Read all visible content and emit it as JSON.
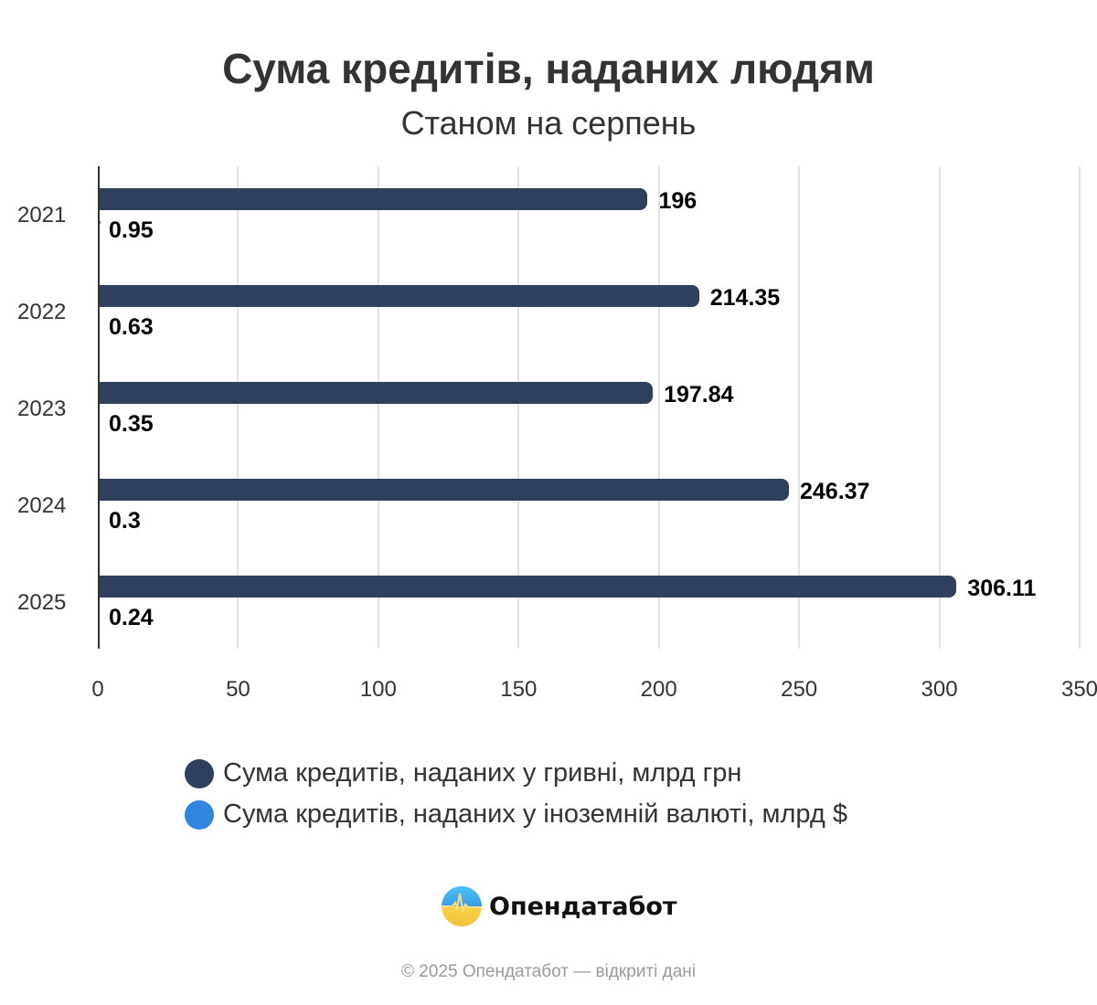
{
  "title": "Сума кредитів, наданих людям",
  "subtitle": "Станом на серпень",
  "chart_data": {
    "type": "bar",
    "orientation": "horizontal",
    "title": "Сума кредитів, наданих людям",
    "subtitle": "Станом на серпень",
    "categories": [
      "2021",
      "2022",
      "2023",
      "2024",
      "2025"
    ],
    "series": [
      {
        "name": "Сума кредитів, наданих у гривні, млрд грн",
        "color": "#2f3f5e",
        "values": [
          196,
          214.35,
          197.84,
          246.37,
          306.11
        ]
      },
      {
        "name": "Сума кредитів, наданих у іноземній валюті, млрд $",
        "color": "#2e86de",
        "values": [
          0.95,
          0.63,
          0.35,
          0.3,
          0.24
        ]
      }
    ],
    "value_labels_uah": [
      "196",
      "214.35",
      "197.84",
      "246.37",
      "306.11"
    ],
    "value_labels_usd": [
      "0.95",
      "0.63",
      "0.35",
      "0.3",
      "0.24"
    ],
    "xlabel": "",
    "ylabel": "",
    "xlim": [
      0,
      350
    ],
    "x_ticks": [
      "0",
      "50",
      "100",
      "150",
      "200",
      "250",
      "300",
      "350"
    ],
    "grid": true,
    "legend_position": "bottom"
  },
  "legend": [
    {
      "label": "Сума кредитів, наданих у гривні, млрд грн",
      "color": "#2f3f5e"
    },
    {
      "label": "Сума кредитів, наданих у іноземній валюті, млрд $",
      "color": "#2e86de"
    }
  ],
  "logo": {
    "text": "Опендатабот",
    "icon": "opendatabot-logo-icon"
  },
  "footer": "© 2025 Опендатабот — відкриті дані"
}
